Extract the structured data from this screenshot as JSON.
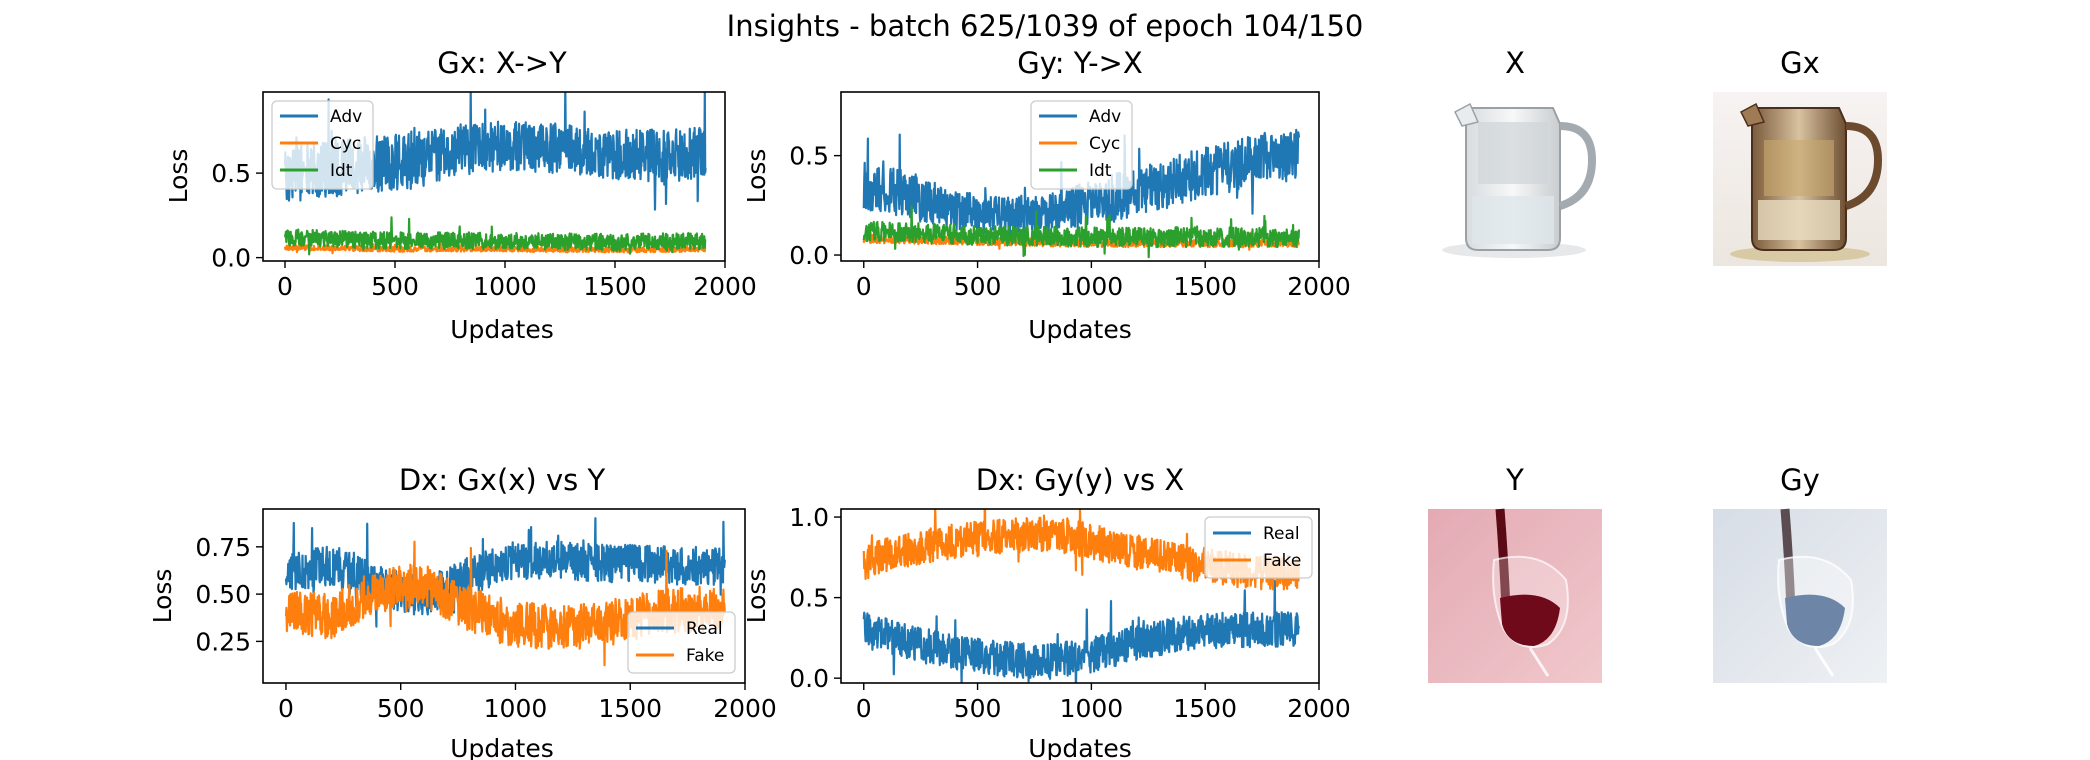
{
  "figure": {
    "suptitle": "Insights - batch 625/1039 of epoch 104/150"
  },
  "colors": {
    "blue": "#1f77b4",
    "orange": "#ff7f0e",
    "green": "#2ca02c"
  },
  "chart_data": [
    {
      "id": "gx",
      "type": "line",
      "title": "Gx: X->Y",
      "xlabel": "Updates",
      "ylabel": "Loss",
      "xlim": [
        -100,
        2000
      ],
      "ylim": [
        -0.02,
        0.98
      ],
      "xticks": [
        0,
        500,
        1000,
        1500,
        2000
      ],
      "xtick_labels": [
        "0",
        "500",
        "1000",
        "1500",
        "2000"
      ],
      "yticks": [
        0.0,
        0.5
      ],
      "ytick_labels": [
        "0.0",
        "0.5"
      ],
      "legend": "upper-left",
      "series": [
        {
          "name": "Adv",
          "color": "#1f77b4",
          "n": 1912,
          "x": [
            0,
            200,
            400,
            600,
            800,
            1000,
            1200,
            1400,
            1600,
            1800,
            1912
          ],
          "values": [
            0.5,
            0.52,
            0.55,
            0.58,
            0.64,
            0.66,
            0.65,
            0.63,
            0.6,
            0.6,
            0.62
          ],
          "spread": [
            0.17,
            0.17,
            0.17,
            0.17,
            0.15,
            0.15,
            0.15,
            0.15,
            0.16,
            0.16,
            0.16
          ]
        },
        {
          "name": "Cyc",
          "color": "#ff7f0e",
          "n": 1912,
          "x": [
            0,
            500,
            1000,
            1500,
            1912
          ],
          "values": [
            0.06,
            0.05,
            0.05,
            0.045,
            0.05
          ],
          "spread": [
            0.015,
            0.015,
            0.015,
            0.015,
            0.015
          ]
        },
        {
          "name": "Idt",
          "color": "#2ca02c",
          "n": 1912,
          "x": [
            0,
            500,
            1000,
            1500,
            1912
          ],
          "values": [
            0.12,
            0.1,
            0.1,
            0.09,
            0.1
          ],
          "spread": [
            0.05,
            0.05,
            0.05,
            0.05,
            0.05
          ]
        }
      ]
    },
    {
      "id": "gy",
      "type": "line",
      "title": "Gy: Y->X",
      "xlabel": "Updates",
      "ylabel": "Loss",
      "xlim": [
        -100,
        2000
      ],
      "ylim": [
        -0.03,
        0.82
      ],
      "xticks": [
        0,
        500,
        1000,
        1500,
        2000
      ],
      "xtick_labels": [
        "0",
        "500",
        "1000",
        "1500",
        "2000"
      ],
      "yticks": [
        0.0,
        0.5
      ],
      "ytick_labels": [
        "0.0",
        "0.5"
      ],
      "legend": "upper-center",
      "series": [
        {
          "name": "Adv",
          "color": "#1f77b4",
          "n": 1912,
          "x": [
            0,
            200,
            400,
            600,
            800,
            1000,
            1200,
            1400,
            1600,
            1800,
            1912
          ],
          "values": [
            0.35,
            0.3,
            0.22,
            0.2,
            0.2,
            0.26,
            0.32,
            0.38,
            0.44,
            0.5,
            0.5
          ],
          "spread": [
            0.12,
            0.12,
            0.1,
            0.1,
            0.1,
            0.12,
            0.12,
            0.13,
            0.13,
            0.13,
            0.13
          ]
        },
        {
          "name": "Cyc",
          "color": "#ff7f0e",
          "n": 1912,
          "x": [
            0,
            500,
            1000,
            1500,
            1912
          ],
          "values": [
            0.08,
            0.07,
            0.06,
            0.06,
            0.06
          ],
          "spread": [
            0.02,
            0.02,
            0.02,
            0.02,
            0.02
          ]
        },
        {
          "name": "Idt",
          "color": "#2ca02c",
          "n": 1912,
          "x": [
            0,
            500,
            1000,
            1500,
            1912
          ],
          "values": [
            0.12,
            0.1,
            0.09,
            0.09,
            0.09
          ],
          "spread": [
            0.05,
            0.05,
            0.05,
            0.05,
            0.05
          ]
        }
      ]
    },
    {
      "id": "dx1",
      "type": "line",
      "title": "Dx: Gx(x) vs Y",
      "xlabel": "Updates",
      "ylabel": "Loss",
      "xlim": [
        -100,
        2000
      ],
      "ylim": [
        0.03,
        0.95
      ],
      "xticks": [
        0,
        500,
        1000,
        1500,
        2000
      ],
      "xtick_labels": [
        "0",
        "500",
        "1000",
        "1500",
        "2000"
      ],
      "yticks": [
        0.25,
        0.5,
        0.75
      ],
      "ytick_labels": [
        "0.25",
        "0.50",
        "0.75"
      ],
      "legend": "lower-right",
      "series": [
        {
          "name": "Real",
          "color": "#1f77b4",
          "n": 1912,
          "x": [
            0,
            200,
            400,
            600,
            800,
            1000,
            1200,
            1400,
            1600,
            1800,
            1912
          ],
          "values": [
            0.6,
            0.65,
            0.55,
            0.48,
            0.6,
            0.68,
            0.68,
            0.66,
            0.66,
            0.64,
            0.65
          ],
          "spread": [
            0.11,
            0.11,
            0.11,
            0.1,
            0.1,
            0.1,
            0.1,
            0.1,
            0.1,
            0.1,
            0.1
          ]
        },
        {
          "name": "Fake",
          "color": "#ff7f0e",
          "n": 1912,
          "x": [
            0,
            200,
            400,
            600,
            800,
            1000,
            1200,
            1400,
            1600,
            1800,
            1912
          ],
          "values": [
            0.4,
            0.38,
            0.52,
            0.55,
            0.42,
            0.34,
            0.32,
            0.34,
            0.4,
            0.42,
            0.42
          ],
          "spread": [
            0.12,
            0.12,
            0.12,
            0.12,
            0.12,
            0.12,
            0.12,
            0.12,
            0.12,
            0.12,
            0.12
          ]
        }
      ]
    },
    {
      "id": "dx2",
      "type": "line",
      "title": "Dx: Gy(y) vs X",
      "xlabel": "Updates",
      "ylabel": "Loss",
      "xlim": [
        -100,
        2000
      ],
      "ylim": [
        -0.03,
        1.05
      ],
      "xticks": [
        0,
        500,
        1000,
        1500,
        2000
      ],
      "xtick_labels": [
        "0",
        "500",
        "1000",
        "1500",
        "2000"
      ],
      "yticks": [
        0.0,
        0.5,
        1.0
      ],
      "ytick_labels": [
        "0.0",
        "0.5",
        "1.0"
      ],
      "legend": "upper-right",
      "series": [
        {
          "name": "Real",
          "color": "#1f77b4",
          "n": 1912,
          "x": [
            0,
            200,
            400,
            600,
            800,
            1000,
            1200,
            1400,
            1600,
            1800,
            1912
          ],
          "values": [
            0.3,
            0.22,
            0.16,
            0.12,
            0.1,
            0.14,
            0.22,
            0.28,
            0.3,
            0.3,
            0.3
          ],
          "spread": [
            0.11,
            0.11,
            0.11,
            0.11,
            0.11,
            0.11,
            0.11,
            0.11,
            0.11,
            0.11,
            0.11
          ]
        },
        {
          "name": "Fake",
          "color": "#ff7f0e",
          "n": 1912,
          "x": [
            0,
            200,
            400,
            600,
            800,
            1000,
            1200,
            1400,
            1600,
            1800,
            1912
          ],
          "values": [
            0.72,
            0.8,
            0.85,
            0.88,
            0.9,
            0.85,
            0.78,
            0.72,
            0.68,
            0.65,
            0.65
          ],
          "spread": [
            0.11,
            0.11,
            0.11,
            0.11,
            0.11,
            0.11,
            0.11,
            0.11,
            0.11,
            0.11,
            0.11
          ]
        }
      ]
    }
  ],
  "images": [
    {
      "id": "x",
      "title": "X",
      "subject": "glass-water-pitcher"
    },
    {
      "id": "gx",
      "title": "Gx",
      "subject": "tinted-pitcher"
    },
    {
      "id": "y",
      "title": "Y",
      "subject": "red-wine-glass"
    },
    {
      "id": "gy",
      "title": "Gy",
      "subject": "blue-tinted-glass"
    }
  ]
}
